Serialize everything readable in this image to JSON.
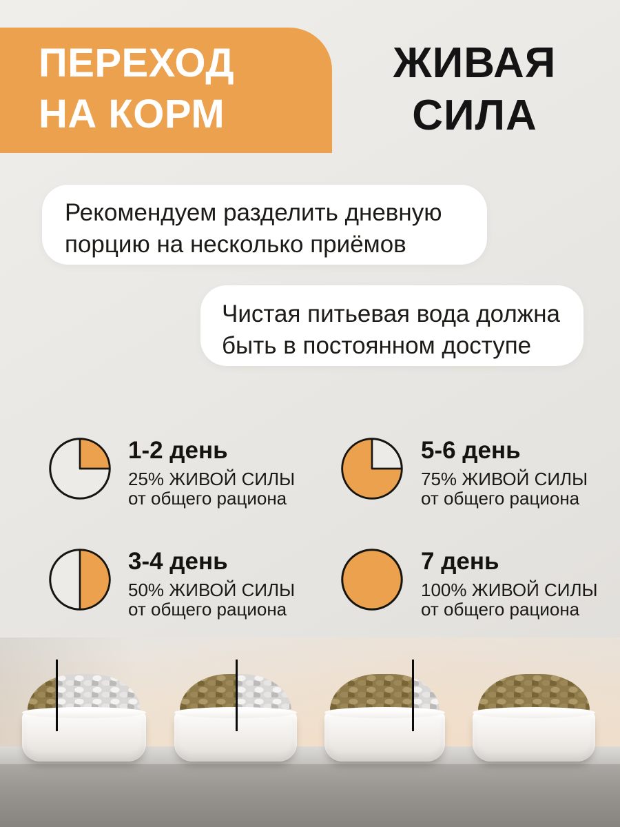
{
  "header": {
    "line1": "ПЕРЕХОД",
    "line2": "НА КОРМ"
  },
  "brand": {
    "line1": "ЖИВАЯ",
    "line2": "СИЛА"
  },
  "notes": [
    {
      "lines": [
        "Рекомендуем разделить дневную",
        "порцию на несколько приёмов"
      ]
    },
    {
      "lines": [
        "Чистая питьевая вода должна",
        "быть в постоянном доступе"
      ]
    }
  ],
  "chart_data": {
    "type": "pie",
    "title": "Переход на корм Живая Сила",
    "pies": [
      {
        "label": "1-2 день",
        "percent": 25,
        "desc1": "25% ЖИВОЙ СИЛЫ",
        "desc2": "от общего рациона",
        "orange_start_deg": 0
      },
      {
        "label": "5-6 день",
        "percent": 75,
        "desc1": "75% ЖИВОЙ СИЛЫ",
        "desc2": "от общего рациона",
        "orange_start_deg": 90
      },
      {
        "label": "3-4 день",
        "percent": 50,
        "desc1": "50% ЖИВОЙ СИЛЫ",
        "desc2": "от общего рациона",
        "orange_start_deg": 0
      },
      {
        "label": "7 день",
        "percent": 100,
        "desc1": "100% ЖИВОЙ СИЛЫ",
        "desc2": "от общего рациона",
        "orange_start_deg": 0
      }
    ]
  },
  "bowls": [
    {
      "new_food_percent": 25,
      "divider_line": true
    },
    {
      "new_food_percent": 50,
      "divider_line": true
    },
    {
      "new_food_percent": 75,
      "divider_line": true
    },
    {
      "new_food_percent": 100,
      "divider_line": false
    }
  ],
  "colors": {
    "accent": "#ECA14F",
    "pie_outline": "#17150F",
    "pie_empty": "#EDEBE7",
    "header_text": "#FFFFFF",
    "title_text": "#141414"
  }
}
